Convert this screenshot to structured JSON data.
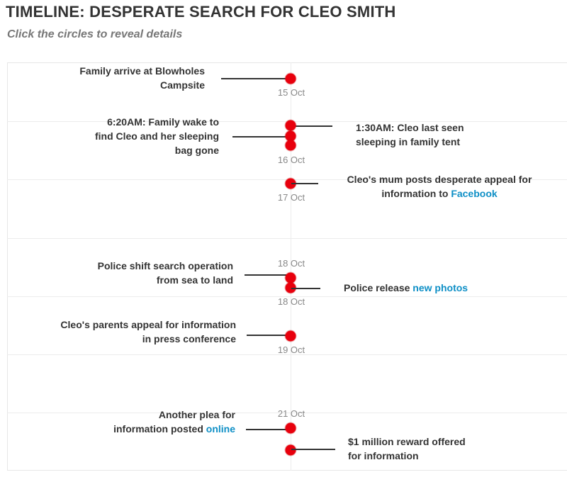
{
  "header": {
    "title": "TIMELINE: DESPERATE SEARCH FOR CLEO SMITH",
    "subtitle": "Click the circles to reveal details"
  },
  "colors": {
    "dot": "#e8000d",
    "link": "#0e8fc6",
    "line": "#333333"
  },
  "events": [
    {
      "id": "e1",
      "side": "left",
      "text_lines": [
        "Family arrive at Blowholes",
        "Campsite"
      ],
      "date": "15 Oct"
    },
    {
      "id": "e2",
      "side": "right",
      "text_lines": [
        "1:30AM: Cleo last seen",
        "sleeping in family tent"
      ]
    },
    {
      "id": "e3",
      "side": "left",
      "text_lines": [
        "6:20AM: Family wake to",
        "find Cleo and her sleeping",
        "bag gone"
      ],
      "date": "16 Oct"
    },
    {
      "id": "e4",
      "side": "right",
      "text_before": "Cleo's mum posts desperate appeal for",
      "text_line2": "information to ",
      "link": "Facebook",
      "date": "17 Oct"
    },
    {
      "id": "e5",
      "side": "left",
      "text_lines": [
        "Police shift search operation",
        "from sea to land"
      ],
      "date_above": "18 Oct"
    },
    {
      "id": "e6",
      "side": "right",
      "text": "Police release ",
      "link": "new photos",
      "date": "18 Oct"
    },
    {
      "id": "e7",
      "side": "left",
      "text_lines": [
        "Cleo's parents appeal for information",
        "in press conference"
      ],
      "date": "19 Oct"
    },
    {
      "id": "e8",
      "side": "left",
      "text_line1": "Another plea for",
      "text_line2": "information posted ",
      "link": "online",
      "date_above": "21 Oct"
    },
    {
      "id": "e9",
      "side": "right",
      "text_lines": [
        "$1 million reward offered",
        "for information"
      ]
    }
  ]
}
